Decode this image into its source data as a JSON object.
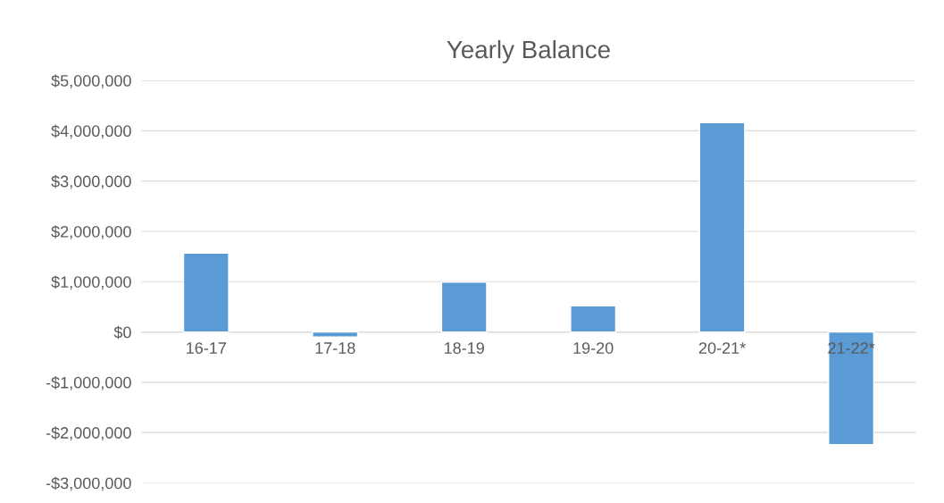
{
  "chart_data": {
    "type": "bar",
    "title": "Yearly Balance",
    "categories": [
      "16-17",
      "17-18",
      "18-19",
      "19-20",
      "20-21*",
      "21-22*"
    ],
    "values": [
      1570000,
      -100000,
      990000,
      520000,
      4160000,
      -2240000
    ],
    "color": "#5b9bd5",
    "ylim": [
      -3000000,
      5000000
    ],
    "yticks": [
      {
        "value": -3000000,
        "label": "-$3,000,000"
      },
      {
        "value": -2000000,
        "label": "-$2,000,000"
      },
      {
        "value": -1000000,
        "label": "-$1,000,000"
      },
      {
        "value": 0,
        "label": "$0"
      },
      {
        "value": 1000000,
        "label": "$1,000,000"
      },
      {
        "value": 2000000,
        "label": "$2,000,000"
      },
      {
        "value": 3000000,
        "label": "$3,000,000"
      },
      {
        "value": 4000000,
        "label": "$4,000,000"
      },
      {
        "value": 5000000,
        "label": "$5,000,000"
      }
    ],
    "grid": "y",
    "legend": false
  }
}
